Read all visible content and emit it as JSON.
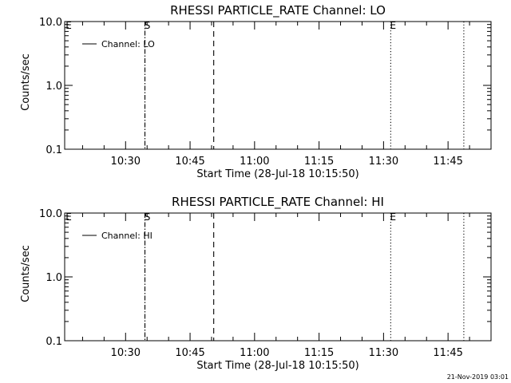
{
  "footer_timestamp": "21-Nov-2019 03:01",
  "chart_data": [
    {
      "type": "line",
      "title": "RHESSI PARTICLE_RATE Channel: LO",
      "xlabel": "Start Time (28-Jul-18 10:15:50)",
      "ylabel": "Counts/sec",
      "y_scale": "log",
      "ylim": [
        0.1,
        10.0
      ],
      "y_ticks": [
        {
          "value": 0.1,
          "label": "0.1"
        },
        {
          "value": 1.0,
          "label": "1.0"
        },
        {
          "value": 10.0,
          "label": "10.0"
        }
      ],
      "xlim": [
        "10:15:50",
        "11:55:00"
      ],
      "x_ticks": [
        "10:30",
        "10:45",
        "11:00",
        "11:15",
        "11:30",
        "11:45"
      ],
      "grid": false,
      "legend": {
        "position": "top-left",
        "entries": [
          "Channel: LO"
        ]
      },
      "series": [
        {
          "name": "Channel: LO",
          "values": []
        }
      ],
      "event_markers": [
        {
          "time": "10:15:50",
          "label": "E",
          "style": "none"
        },
        {
          "time": "10:34:30",
          "label": "S",
          "style": "dashdot"
        },
        {
          "time": "10:50:30",
          "label": "",
          "style": "dashed"
        },
        {
          "time": "11:31:40",
          "label": "E",
          "style": "dotted"
        },
        {
          "time": "11:48:40",
          "label": "",
          "style": "dotted"
        }
      ]
    },
    {
      "type": "line",
      "title": "RHESSI PARTICLE_RATE Channel: HI",
      "xlabel": "Start Time (28-Jul-18 10:15:50)",
      "ylabel": "Counts/sec",
      "y_scale": "log",
      "ylim": [
        0.1,
        10.0
      ],
      "y_ticks": [
        {
          "value": 0.1,
          "label": "0.1"
        },
        {
          "value": 1.0,
          "label": "1.0"
        },
        {
          "value": 10.0,
          "label": "10.0"
        }
      ],
      "xlim": [
        "10:15:50",
        "11:55:00"
      ],
      "x_ticks": [
        "10:30",
        "10:45",
        "11:00",
        "11:15",
        "11:30",
        "11:45"
      ],
      "grid": false,
      "legend": {
        "position": "top-left",
        "entries": [
          "Channel: HI"
        ]
      },
      "series": [
        {
          "name": "Channel: HI",
          "values": []
        }
      ],
      "event_markers": [
        {
          "time": "10:15:50",
          "label": "E",
          "style": "none"
        },
        {
          "time": "10:34:30",
          "label": "S",
          "style": "dashdot"
        },
        {
          "time": "10:50:30",
          "label": "",
          "style": "dashed"
        },
        {
          "time": "11:31:40",
          "label": "E",
          "style": "dotted"
        },
        {
          "time": "11:48:40",
          "label": "",
          "style": "dotted"
        }
      ]
    }
  ]
}
